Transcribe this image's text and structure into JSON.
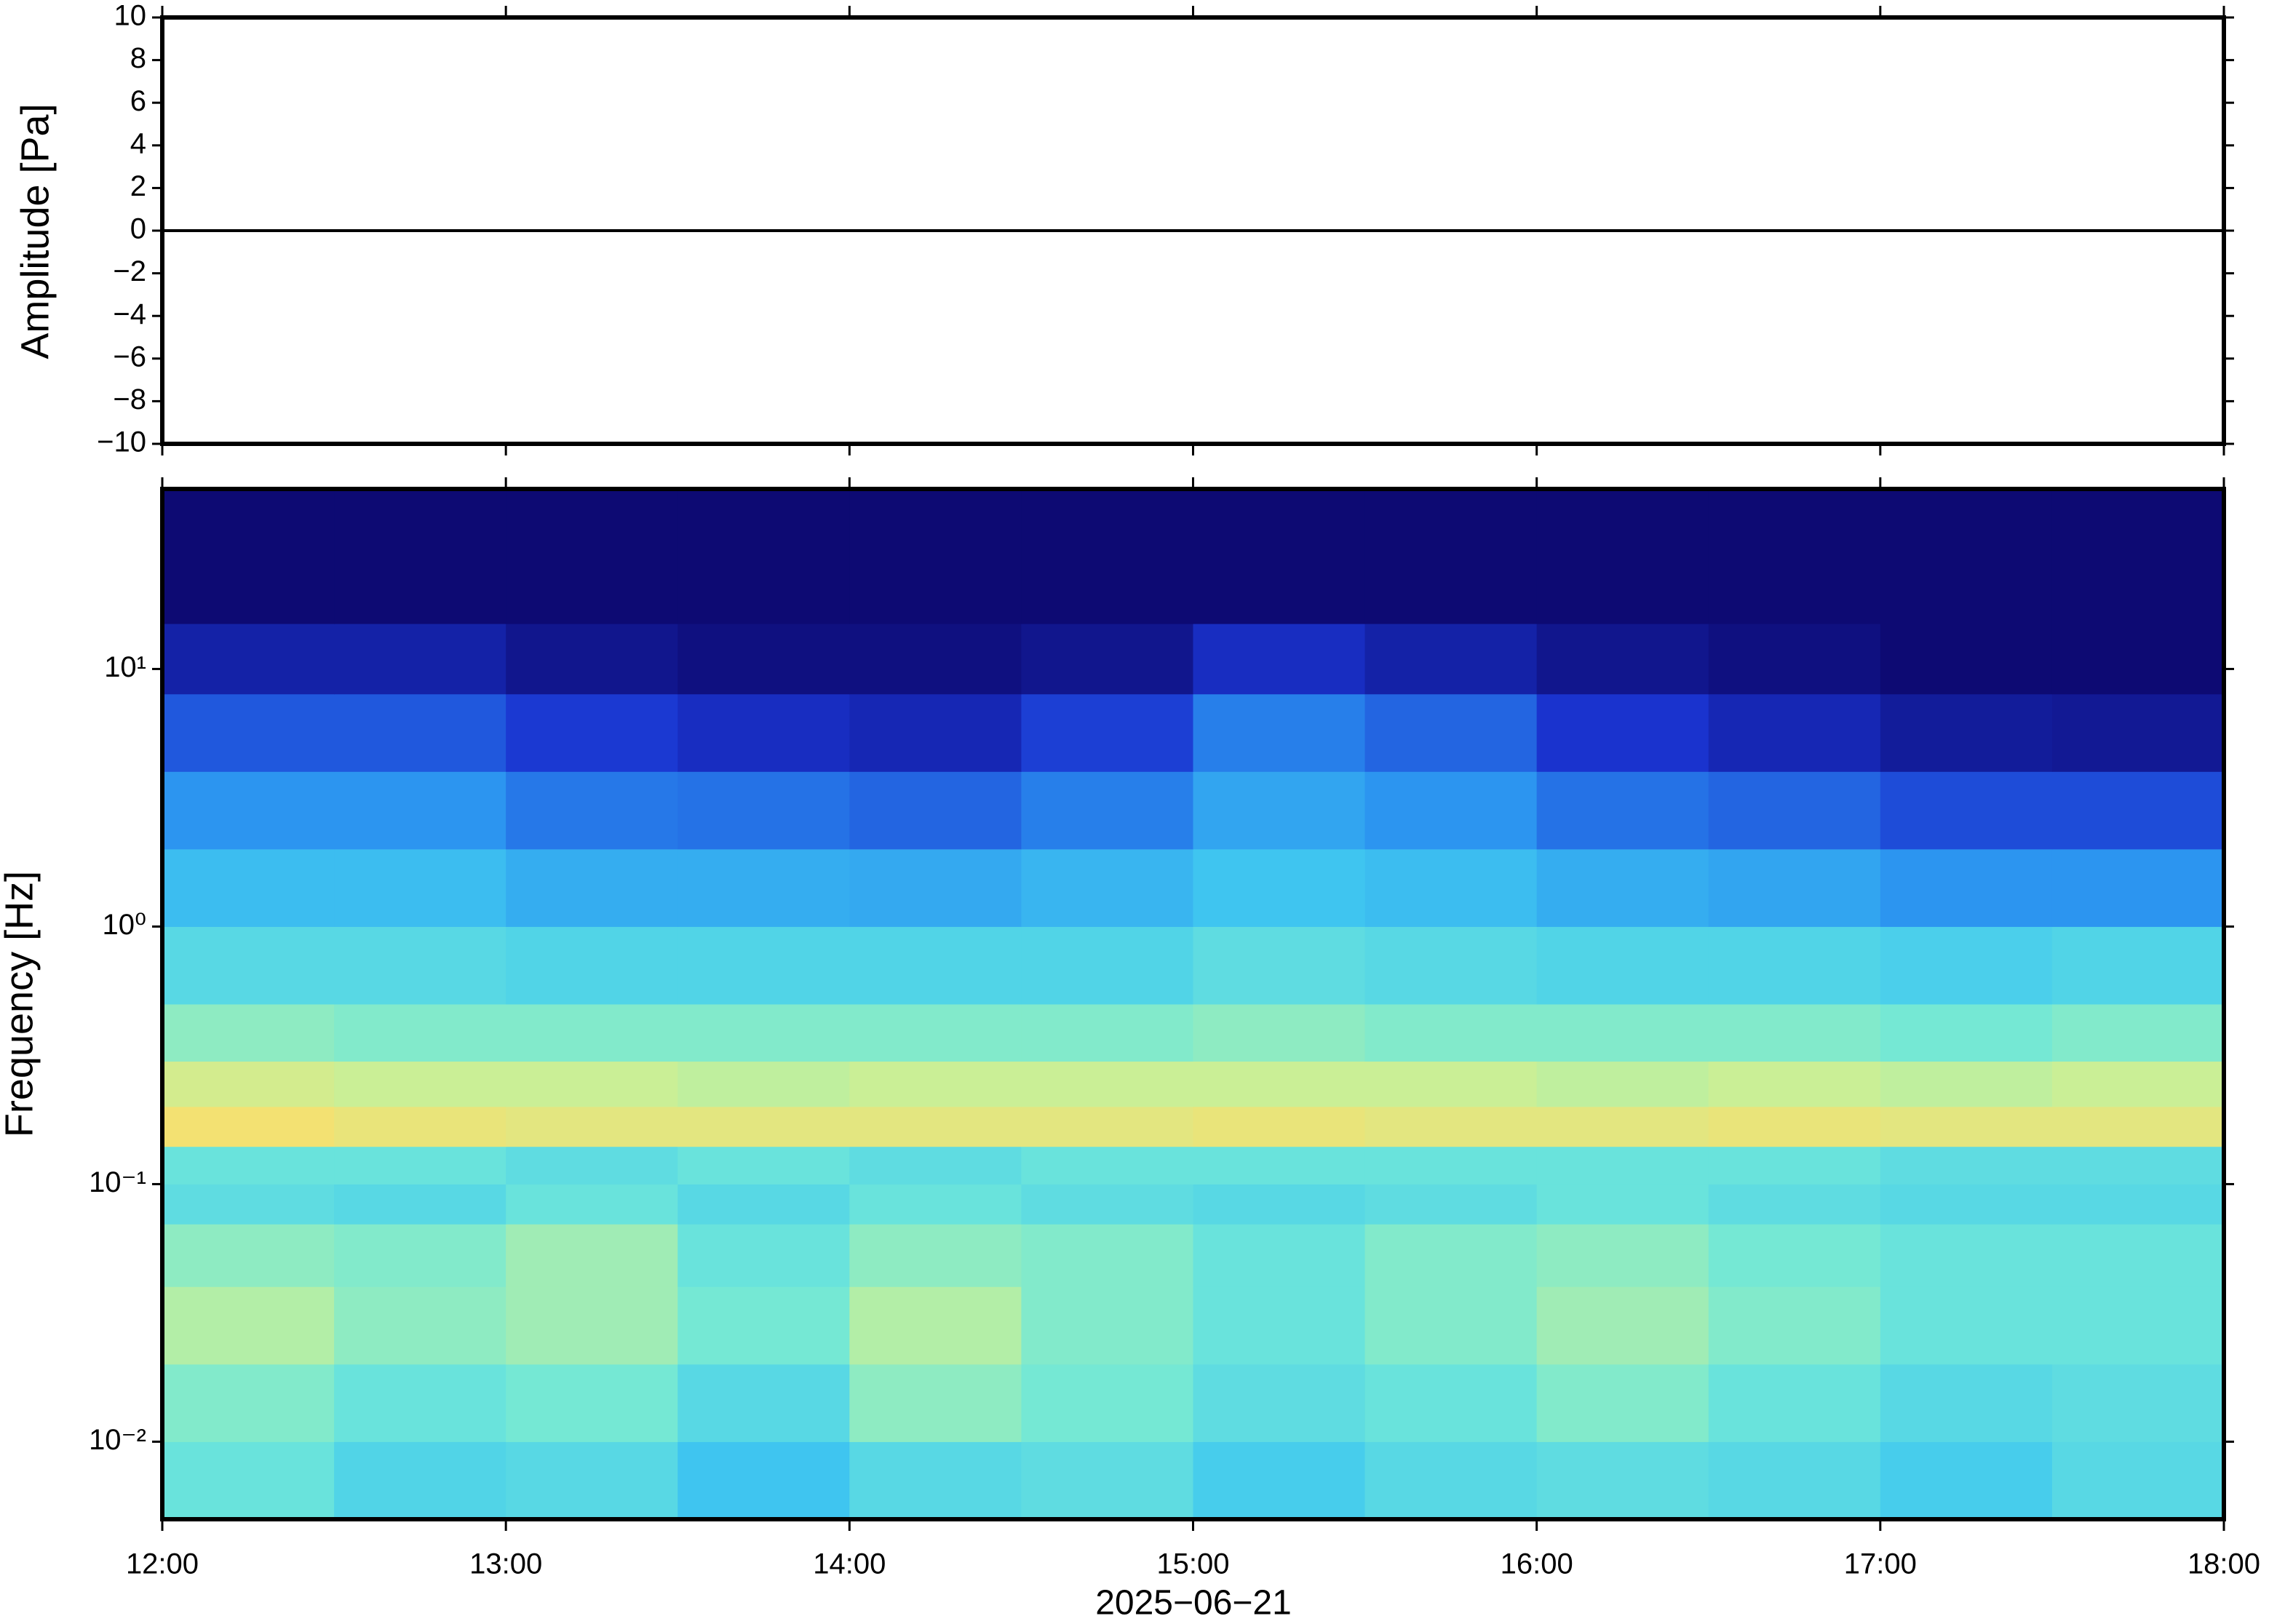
{
  "chart_data": [
    {
      "type": "line",
      "y_label": "Amplitude [Pa]",
      "x": [
        12,
        12.5,
        13,
        13.5,
        14,
        14.5,
        15,
        15.5,
        16,
        16.5,
        17,
        17.5,
        18
      ],
      "series": [
        {
          "values": [
            0,
            0,
            0,
            0,
            0,
            0,
            0,
            0,
            0,
            0,
            0,
            0,
            0
          ],
          "color": "#000000"
        }
      ],
      "xlim": [
        12,
        18
      ],
      "ylim": [
        -10,
        10
      ],
      "yticks": [
        {
          "value": -10,
          "label": "−10"
        },
        {
          "value": -8,
          "label": "−8"
        },
        {
          "value": -6,
          "label": "−6"
        },
        {
          "value": -4,
          "label": "−4"
        },
        {
          "value": -2,
          "label": "−2"
        },
        0,
        2,
        4,
        6,
        8,
        10
      ]
    },
    {
      "type": "heatmap",
      "y_label": "Frequency [Hz]",
      "x_label": "2025−06−21",
      "log_y": true,
      "xbins": [
        12,
        12.5,
        13,
        13.5,
        14,
        14.5,
        15,
        15.5,
        16,
        16.5,
        17,
        17.5,
        18
      ],
      "ybins": [
        0.005,
        0.01,
        0.02,
        0.04,
        0.07,
        0.1,
        0.14,
        0.2,
        0.3,
        0.5,
        1,
        2,
        4,
        8,
        15,
        50
      ],
      "z": [
        [
          0.55,
          0.48,
          0.5,
          0.42,
          0.5,
          0.52,
          0.45,
          0.5,
          0.52,
          0.5,
          0.45,
          0.5
        ],
        [
          0.6,
          0.55,
          0.58,
          0.5,
          0.62,
          0.58,
          0.52,
          0.55,
          0.6,
          0.55,
          0.5,
          0.52
        ],
        [
          0.68,
          0.62,
          0.65,
          0.58,
          0.68,
          0.6,
          0.55,
          0.6,
          0.65,
          0.6,
          0.55,
          0.55
        ],
        [
          0.62,
          0.6,
          0.65,
          0.55,
          0.62,
          0.6,
          0.55,
          0.6,
          0.62,
          0.58,
          0.55,
          0.55
        ],
        [
          0.52,
          0.5,
          0.55,
          0.5,
          0.55,
          0.52,
          0.5,
          0.52,
          0.55,
          0.52,
          0.5,
          0.5
        ],
        [
          0.55,
          0.55,
          0.52,
          0.55,
          0.52,
          0.55,
          0.55,
          0.55,
          0.55,
          0.55,
          0.52,
          0.52
        ],
        [
          0.85,
          0.82,
          0.8,
          0.8,
          0.8,
          0.8,
          0.82,
          0.8,
          0.8,
          0.82,
          0.8,
          0.8
        ],
        [
          0.75,
          0.72,
          0.72,
          0.7,
          0.72,
          0.72,
          0.72,
          0.72,
          0.7,
          0.72,
          0.7,
          0.72
        ],
        [
          0.62,
          0.6,
          0.6,
          0.6,
          0.6,
          0.6,
          0.62,
          0.6,
          0.6,
          0.6,
          0.58,
          0.6
        ],
        [
          0.5,
          0.5,
          0.48,
          0.48,
          0.48,
          0.48,
          0.52,
          0.5,
          0.48,
          0.48,
          0.46,
          0.48
        ],
        [
          0.4,
          0.4,
          0.36,
          0.36,
          0.35,
          0.38,
          0.42,
          0.4,
          0.36,
          0.34,
          0.3,
          0.3
        ],
        [
          0.3,
          0.3,
          0.25,
          0.24,
          0.22,
          0.26,
          0.34,
          0.3,
          0.24,
          0.22,
          0.18,
          0.18
        ],
        [
          0.2,
          0.2,
          0.15,
          0.12,
          0.1,
          0.16,
          0.26,
          0.22,
          0.14,
          0.1,
          0.06,
          0.05
        ],
        [
          0.08,
          0.08,
          0.04,
          0.02,
          0.02,
          0.04,
          0.12,
          0.08,
          0.04,
          0.02,
          0,
          0
        ],
        [
          0,
          0,
          0,
          0,
          0,
          0,
          0,
          0,
          0,
          0,
          0,
          0
        ]
      ],
      "zlim": [
        0,
        1
      ],
      "colormap": [
        "#0d0a73",
        "#1a34d0",
        "#2a8ff0",
        "#40c8f0",
        "#70e8d8",
        "#c8f098",
        "#f5e070",
        "#f5a050"
      ],
      "xlim": [
        12,
        18
      ],
      "ylim": [
        0.005,
        50
      ],
      "xticks": [
        {
          "value": 12,
          "label": "12:00"
        },
        {
          "value": 13,
          "label": "13:00"
        },
        {
          "value": 14,
          "label": "14:00"
        },
        {
          "value": 15,
          "label": "15:00"
        },
        {
          "value": 16,
          "label": "16:00"
        },
        {
          "value": 17,
          "label": "17:00"
        },
        {
          "value": 18,
          "label": "18:00"
        }
      ],
      "yticks": [
        {
          "value": 0.01,
          "label": "10⁻²"
        },
        {
          "value": 0.1,
          "label": "10⁻¹"
        },
        {
          "value": 1,
          "label": "10⁰"
        },
        {
          "value": 10,
          "label": "10¹"
        }
      ]
    }
  ]
}
